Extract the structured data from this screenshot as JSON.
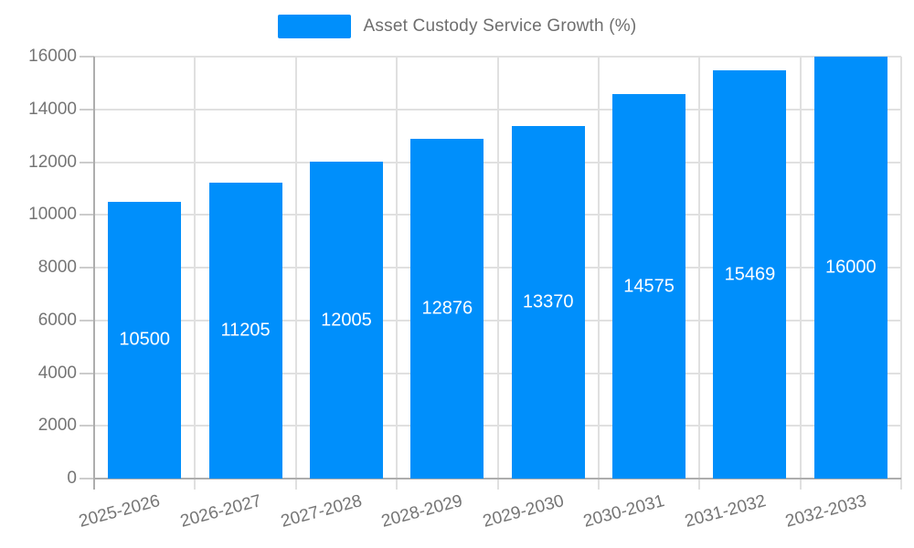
{
  "legend": {
    "label": "Asset Custody Service Growth (%)"
  },
  "colors": {
    "bar": "#008FFB",
    "grid": "#e0e0e0",
    "axis": "#adadad",
    "tick": "#cccccc",
    "axis_label": "#757575",
    "bar_label": "#ffffff",
    "legend_text": "#6e6e6e",
    "background": "#ffffff"
  },
  "chart_data": {
    "type": "bar",
    "title": "Asset Custody Service Growth (%)",
    "categories": [
      "2025-2026",
      "2026-2027",
      "2027-2028",
      "2028-2029",
      "2029-2030",
      "2030-2031",
      "2031-2032",
      "2032-2033"
    ],
    "values": [
      10500,
      11205,
      12005,
      12876,
      13370,
      14575,
      15469,
      16000
    ],
    "y_tick_labels": [
      "0",
      "2000",
      "4000",
      "6000",
      "8000",
      "10000",
      "12000",
      "14000",
      "16000"
    ],
    "xlabel": "",
    "ylabel": "",
    "ylim": [
      0,
      16000
    ],
    "ytick_step": 2000,
    "grid": true,
    "legend_position": "top",
    "bar_value_labels": true,
    "x_label_rotation_deg": -15
  }
}
